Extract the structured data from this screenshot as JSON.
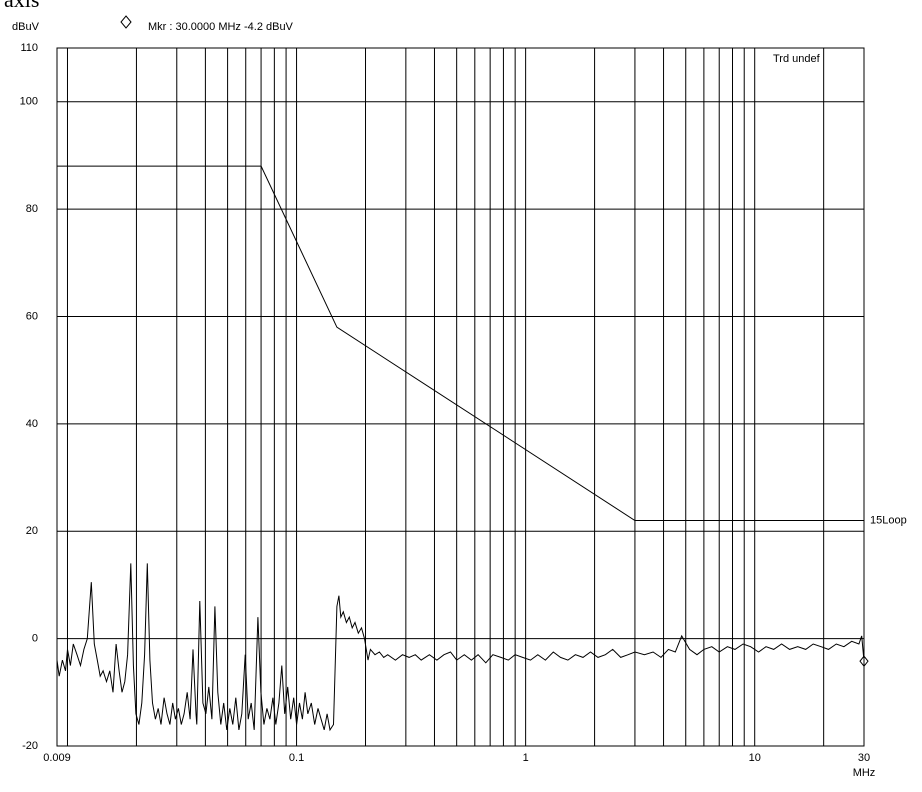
{
  "chart_data": {
    "type": "line",
    "cropped_text": "axis",
    "y_unit": "dBuV",
    "x_unit": "MHz",
    "marker": {
      "label": "Mkr : 30.0000 MHz -4.2 dBuV",
      "x": 30,
      "value": -4.2
    },
    "trace_label": "Trd undef",
    "log_x": true,
    "grid": true,
    "xlim": [
      0.009,
      30
    ],
    "ylim": [
      -20,
      110
    ],
    "xticks": [
      0.009,
      0.1,
      1,
      10,
      30
    ],
    "xgrid": [
      0.01,
      0.02,
      0.03,
      0.04,
      0.05,
      0.06,
      0.07,
      0.08,
      0.09,
      0.2,
      0.3,
      0.4,
      0.5,
      0.6,
      0.7,
      0.8,
      0.9,
      2,
      3,
      4,
      5,
      6,
      7,
      8,
      9,
      20
    ],
    "yticks": [
      -20,
      0,
      20,
      40,
      60,
      80,
      100,
      110
    ],
    "series": [
      {
        "name": "15Loop",
        "color": "#000000",
        "x": [
          0.009,
          0.07,
          0.15,
          3,
          30
        ],
        "values": [
          88,
          88,
          58,
          22,
          22
        ]
      },
      {
        "color": "#000000",
        "x": [
          0.009,
          0.0092,
          0.0095,
          0.0098,
          0.01,
          0.0103,
          0.0106,
          0.011,
          0.0114,
          0.0118,
          0.0122,
          0.0127,
          0.0131,
          0.0135,
          0.0139,
          0.0143,
          0.0148,
          0.0153,
          0.0158,
          0.0163,
          0.0168,
          0.0173,
          0.0178,
          0.0183,
          0.0189,
          0.0194,
          0.0199,
          0.0205,
          0.0211,
          0.0217,
          0.0223,
          0.0229,
          0.0235,
          0.0242,
          0.0249,
          0.0256,
          0.0264,
          0.0272,
          0.028,
          0.0288,
          0.0296,
          0.0305,
          0.0314,
          0.0323,
          0.0333,
          0.0343,
          0.0353,
          0.0364,
          0.0367,
          0.0378,
          0.039,
          0.0402,
          0.0414,
          0.0427,
          0.044,
          0.0453,
          0.0467,
          0.0481,
          0.0496,
          0.0511,
          0.0527,
          0.0543,
          0.056,
          0.0577,
          0.0597,
          0.0615,
          0.0634,
          0.0653,
          0.0678,
          0.0699,
          0.072,
          0.0742,
          0.0765,
          0.0788,
          0.0812,
          0.0837,
          0.0862,
          0.0888,
          0.0915,
          0.0943,
          0.0972,
          0.1,
          0.103,
          0.106,
          0.109,
          0.112,
          0.116,
          0.12,
          0.124,
          0.128,
          0.132,
          0.136,
          0.14,
          0.145,
          0.15,
          0.153,
          0.156,
          0.16,
          0.165,
          0.17,
          0.175,
          0.18,
          0.186,
          0.192,
          0.198,
          0.205,
          0.21,
          0.22,
          0.23,
          0.24,
          0.25,
          0.27,
          0.29,
          0.31,
          0.33,
          0.35,
          0.38,
          0.41,
          0.44,
          0.47,
          0.5,
          0.54,
          0.58,
          0.62,
          0.67,
          0.72,
          0.78,
          0.84,
          0.9,
          0.97,
          1.05,
          1.13,
          1.22,
          1.32,
          1.42,
          1.53,
          1.65,
          1.78,
          1.92,
          2.07,
          2.23,
          2.4,
          2.6,
          2.8,
          3,
          3.3,
          3.6,
          3.9,
          4.2,
          4.5,
          4.8,
          5.2,
          5.6,
          6,
          6.5,
          7,
          7.6,
          8.2,
          8.9,
          9.6,
          10.4,
          11.2,
          12.1,
          13.1,
          14.2,
          15.4,
          16.7,
          18,
          19.5,
          21,
          22.7,
          24.5,
          26.5,
          28.5,
          29.3,
          30
        ],
        "values": [
          -4,
          -7,
          -4,
          -6,
          -2,
          -5,
          -1,
          -3,
          -5,
          -2,
          0,
          10.5,
          -1,
          -4,
          -7,
          -6,
          -8,
          -6,
          -10,
          -1,
          -6,
          -10,
          -8,
          -3,
          14,
          -5,
          -14,
          -16,
          -12,
          -3,
          14,
          -4,
          -12,
          -15,
          -13,
          -16,
          -11,
          -14,
          -16,
          -12,
          -15,
          -13,
          -16,
          -14,
          -10,
          -15,
          -2,
          -14,
          -16,
          7,
          -12,
          -14,
          -9,
          -15,
          6,
          -10,
          -16,
          -12,
          -17,
          -13,
          -16,
          -11,
          -17,
          -14,
          -3,
          -15,
          -12,
          -17,
          4,
          -10,
          -16,
          -13,
          -15,
          -11,
          -16,
          -12,
          -5,
          -14,
          -9,
          -15,
          -11,
          -16,
          -12,
          -15,
          -10,
          -14,
          -12,
          -16,
          -13,
          -15,
          -17,
          -14,
          -17,
          -16,
          6,
          8,
          4,
          5,
          3,
          4,
          2,
          3,
          1,
          2,
          0,
          -4,
          -2,
          -3,
          -2.5,
          -3.5,
          -3,
          -4,
          -3,
          -3.5,
          -3,
          -4,
          -3,
          -4,
          -3,
          -2.5,
          -4,
          -3,
          -4,
          -3,
          -4.5,
          -3,
          -3.5,
          -4,
          -3,
          -3.5,
          -4,
          -3,
          -4,
          -2.5,
          -3.5,
          -4,
          -3,
          -3.5,
          -2.5,
          -3.5,
          -3,
          -2,
          -3.5,
          -3,
          -2.5,
          -3,
          -2.5,
          -3.5,
          -2,
          -2.5,
          0.5,
          -2,
          -3,
          -2,
          -1.5,
          -2.5,
          -1.5,
          -2,
          -1,
          -1.5,
          -2.5,
          -1.5,
          -2,
          -1,
          -2,
          -1.5,
          -2,
          -1,
          -1.5,
          -2,
          -1,
          -1.5,
          -0.5,
          -1,
          0.5,
          -4.2
        ]
      }
    ]
  }
}
